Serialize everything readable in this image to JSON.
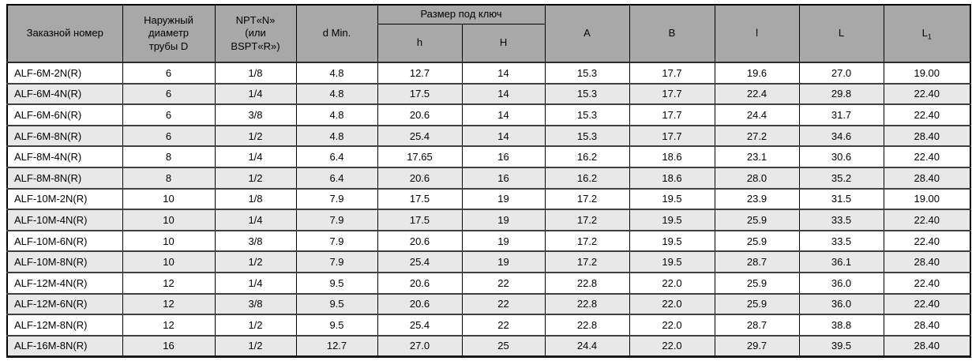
{
  "table": {
    "headers": {
      "order_number": "Заказной номер",
      "outer_diameter": "Наружный\nдиаметр\nтрубы D",
      "thread": "NPT«N»\n(или\nBSPT«R»)",
      "d_min": "d Min.",
      "wrench_size": "Размер под ключ",
      "h_small": "h",
      "h_cap": "H",
      "A": "A",
      "B": "B",
      "l_small": "l",
      "L_cap": "L",
      "L1_base": "L",
      "L1_sub": "1"
    },
    "rows": [
      [
        "ALF-6M-2N(R)",
        "6",
        "1/8",
        "4.8",
        "12.7",
        "14",
        "15.3",
        "17.7",
        "19.6",
        "27.0",
        "19.00"
      ],
      [
        "ALF-6M-4N(R)",
        "6",
        "1/4",
        "4.8",
        "17.5",
        "14",
        "15.3",
        "17.7",
        "22.4",
        "29.8",
        "22.40"
      ],
      [
        "ALF-6M-6N(R)",
        "6",
        "3/8",
        "4.8",
        "20.6",
        "14",
        "15.3",
        "17.7",
        "24.4",
        "31.7",
        "22.40"
      ],
      [
        "ALF-6M-8N(R)",
        "6",
        "1/2",
        "4.8",
        "25.4",
        "14",
        "15.3",
        "17.7",
        "27.2",
        "34.6",
        "28.40"
      ],
      [
        "ALF-8M-4N(R)",
        "8",
        "1/4",
        "6.4",
        "17.65",
        "16",
        "16.2",
        "18.6",
        "23.1",
        "30.6",
        "22.40"
      ],
      [
        "ALF-8M-8N(R)",
        "8",
        "1/2",
        "6.4",
        "20.6",
        "16",
        "16.2",
        "18.6",
        "28.0",
        "35.2",
        "28.40"
      ],
      [
        "ALF-10M-2N(R)",
        "10",
        "1/8",
        "7.9",
        "17.5",
        "19",
        "17.2",
        "19.5",
        "23.9",
        "31.5",
        "19.00"
      ],
      [
        "ALF-10M-4N(R)",
        "10",
        "1/4",
        "7.9",
        "17.5",
        "19",
        "17.2",
        "19.5",
        "25.9",
        "33.5",
        "22.40"
      ],
      [
        "ALF-10M-6N(R)",
        "10",
        "3/8",
        "7.9",
        "20.6",
        "19",
        "17.2",
        "19.5",
        "25.9",
        "33.5",
        "22.40"
      ],
      [
        "ALF-10M-8N(R)",
        "10",
        "1/2",
        "7.9",
        "25.4",
        "19",
        "17.2",
        "19.5",
        "28.7",
        "36.1",
        "28.40"
      ],
      [
        "ALF-12M-4N(R)",
        "12",
        "1/4",
        "9.5",
        "20.6",
        "22",
        "22.8",
        "22.0",
        "25.9",
        "36.0",
        "22.40"
      ],
      [
        "ALF-12M-6N(R)",
        "12",
        "3/8",
        "9.5",
        "20.6",
        "22",
        "22.8",
        "22.0",
        "25.9",
        "36.0",
        "22.40"
      ],
      [
        "ALF-12M-8N(R)",
        "12",
        "1/2",
        "9.5",
        "25.4",
        "22",
        "22.8",
        "22.0",
        "28.7",
        "38.8",
        "28.40"
      ],
      [
        "ALF-16M-8N(R)",
        "16",
        "1/2",
        "12.7",
        "27.0",
        "25",
        "24.4",
        "22.0",
        "29.7",
        "39.5",
        "28.40"
      ]
    ],
    "colors": {
      "header_background": "#a8a8a8",
      "stripe_row_background": "#e8e8e8",
      "border": "#000000",
      "row_separator": "#3f3f3f"
    }
  }
}
